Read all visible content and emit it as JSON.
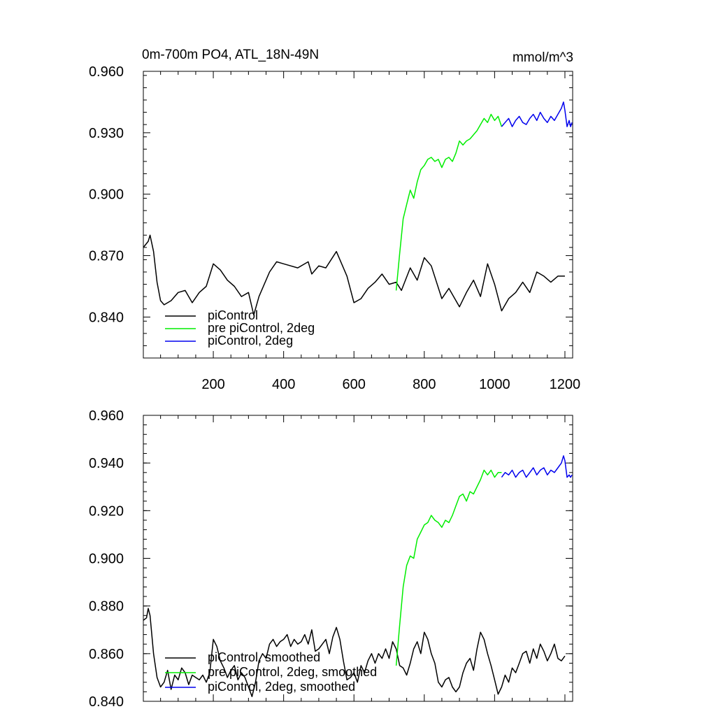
{
  "figure": {
    "title_left": "0m-700m PO4, ATL_18N-49N",
    "title_right": "mmol/m^3"
  },
  "chart_data": [
    {
      "type": "line",
      "title": "0m-700m PO4, ATL_18N-49N",
      "units": "mmol/m^3",
      "xlim": [
        1,
        1222
      ],
      "ylim": [
        0.82,
        0.96
      ],
      "xticks": [
        200,
        400,
        600,
        800,
        1000,
        1200
      ],
      "yticks": [
        0.84,
        0.87,
        0.9,
        0.93,
        0.96
      ],
      "ytick_labels": [
        "0.840",
        "0.870",
        "0.900",
        "0.930",
        "0.960"
      ],
      "legend_position": "bottom-left",
      "grid": false,
      "series": [
        {
          "name": "piControl",
          "color": "#000000",
          "x": [
            1,
            15,
            20,
            30,
            40,
            50,
            60,
            80,
            100,
            120,
            140,
            160,
            180,
            200,
            220,
            240,
            260,
            280,
            300,
            315,
            330,
            360,
            380,
            400,
            440,
            470,
            480,
            500,
            520,
            550,
            580,
            600,
            620,
            640,
            660,
            680,
            700,
            720,
            735,
            760,
            780,
            800,
            820,
            850,
            870,
            900,
            920,
            940,
            960,
            980,
            1000,
            1020,
            1040,
            1060,
            1080,
            1100,
            1120,
            1140,
            1160,
            1180,
            1200
          ],
          "y": [
            0.874,
            0.877,
            0.88,
            0.872,
            0.857,
            0.848,
            0.846,
            0.848,
            0.852,
            0.853,
            0.847,
            0.852,
            0.855,
            0.866,
            0.863,
            0.858,
            0.855,
            0.85,
            0.852,
            0.841,
            0.85,
            0.862,
            0.867,
            0.866,
            0.864,
            0.867,
            0.861,
            0.865,
            0.864,
            0.872,
            0.86,
            0.847,
            0.849,
            0.854,
            0.857,
            0.861,
            0.856,
            0.857,
            0.853,
            0.864,
            0.858,
            0.869,
            0.865,
            0.849,
            0.854,
            0.845,
            0.852,
            0.858,
            0.85,
            0.866,
            0.856,
            0.843,
            0.849,
            0.852,
            0.857,
            0.852,
            0.862,
            0.86,
            0.857,
            0.86,
            0.86
          ]
        },
        {
          "name": "pre piControl, 2deg",
          "color": "#00ee00",
          "x": [
            720,
            730,
            740,
            750,
            760,
            770,
            780,
            790,
            800,
            810,
            820,
            830,
            840,
            850,
            860,
            870,
            880,
            890,
            900,
            910,
            920,
            930,
            940,
            950,
            960,
            970,
            980,
            990,
            1000,
            1010,
            1020
          ],
          "y": [
            0.853,
            0.871,
            0.888,
            0.895,
            0.902,
            0.898,
            0.906,
            0.912,
            0.914,
            0.917,
            0.918,
            0.916,
            0.917,
            0.913,
            0.917,
            0.918,
            0.916,
            0.92,
            0.926,
            0.924,
            0.926,
            0.927,
            0.929,
            0.931,
            0.934,
            0.937,
            0.935,
            0.939,
            0.936,
            0.938,
            0.933
          ]
        },
        {
          "name": "piControl, 2deg",
          "color": "#0000ee",
          "x": [
            1020,
            1030,
            1040,
            1050,
            1060,
            1070,
            1080,
            1090,
            1100,
            1110,
            1120,
            1130,
            1140,
            1150,
            1160,
            1170,
            1180,
            1190,
            1196,
            1200,
            1206,
            1212,
            1216,
            1220
          ],
          "y": [
            0.933,
            0.935,
            0.937,
            0.933,
            0.936,
            0.938,
            0.935,
            0.934,
            0.937,
            0.939,
            0.936,
            0.94,
            0.937,
            0.935,
            0.938,
            0.936,
            0.939,
            0.942,
            0.945,
            0.941,
            0.933,
            0.936,
            0.933,
            0.935
          ]
        }
      ]
    },
    {
      "type": "line",
      "xlim": [
        1,
        1222
      ],
      "ylim": [
        0.84,
        0.96
      ],
      "xticks": [
        200,
        400,
        600,
        800,
        1000,
        1200
      ],
      "yticks": [
        0.84,
        0.86,
        0.88,
        0.9,
        0.92,
        0.94,
        0.96
      ],
      "ytick_labels": [
        "0.840",
        "0.860",
        "0.880",
        "0.900",
        "0.920",
        "0.940",
        "0.960"
      ],
      "legend_position": "bottom-left",
      "grid": false,
      "series": [
        {
          "name": "piControl, smoothed",
          "color": "#000000",
          "x": [
            1,
            10,
            15,
            20,
            25,
            30,
            40,
            50,
            60,
            70,
            80,
            90,
            100,
            110,
            120,
            130,
            140,
            150,
            160,
            170,
            180,
            190,
            200,
            210,
            220,
            230,
            240,
            250,
            260,
            270,
            280,
            290,
            300,
            310,
            320,
            330,
            340,
            350,
            360,
            370,
            380,
            390,
            400,
            410,
            420,
            430,
            440,
            450,
            460,
            470,
            480,
            490,
            500,
            510,
            520,
            530,
            540,
            550,
            560,
            570,
            580,
            590,
            600,
            610,
            620,
            630,
            640,
            650,
            660,
            670,
            680,
            690,
            700,
            710,
            720,
            730,
            740,
            750,
            760,
            770,
            780,
            790,
            800,
            810,
            820,
            830,
            840,
            850,
            860,
            870,
            880,
            890,
            900,
            910,
            920,
            930,
            940,
            950,
            960,
            970,
            980,
            990,
            1000,
            1010,
            1020,
            1030,
            1040,
            1050,
            1060,
            1070,
            1080,
            1090,
            1100,
            1110,
            1120,
            1130,
            1140,
            1150,
            1160,
            1170,
            1180,
            1190,
            1200
          ],
          "y": [
            0.874,
            0.875,
            0.879,
            0.876,
            0.868,
            0.86,
            0.85,
            0.846,
            0.848,
            0.853,
            0.845,
            0.851,
            0.849,
            0.854,
            0.852,
            0.847,
            0.851,
            0.85,
            0.849,
            0.851,
            0.848,
            0.852,
            0.866,
            0.863,
            0.857,
            0.854,
            0.85,
            0.853,
            0.855,
            0.849,
            0.852,
            0.85,
            0.846,
            0.842,
            0.848,
            0.857,
            0.86,
            0.858,
            0.864,
            0.866,
            0.863,
            0.865,
            0.866,
            0.868,
            0.863,
            0.866,
            0.864,
            0.865,
            0.868,
            0.864,
            0.87,
            0.861,
            0.862,
            0.864,
            0.866,
            0.86,
            0.867,
            0.871,
            0.866,
            0.857,
            0.849,
            0.85,
            0.852,
            0.848,
            0.855,
            0.852,
            0.857,
            0.86,
            0.856,
            0.86,
            0.858,
            0.862,
            0.858,
            0.865,
            0.862,
            0.855,
            0.854,
            0.851,
            0.856,
            0.862,
            0.865,
            0.86,
            0.869,
            0.866,
            0.86,
            0.856,
            0.848,
            0.846,
            0.849,
            0.85,
            0.846,
            0.844,
            0.846,
            0.852,
            0.856,
            0.858,
            0.853,
            0.862,
            0.869,
            0.866,
            0.86,
            0.855,
            0.849,
            0.843,
            0.846,
            0.851,
            0.848,
            0.854,
            0.852,
            0.856,
            0.86,
            0.861,
            0.856,
            0.862,
            0.858,
            0.864,
            0.861,
            0.857,
            0.86,
            0.864,
            0.858,
            0.857,
            0.859
          ]
        },
        {
          "name": "pre piControl, 2deg, smoothed",
          "color": "#00ee00",
          "x": [
            720,
            730,
            740,
            750,
            760,
            770,
            780,
            790,
            800,
            810,
            820,
            830,
            840,
            850,
            860,
            870,
            880,
            890,
            900,
            910,
            920,
            930,
            940,
            950,
            960,
            970,
            980,
            990,
            1000,
            1010,
            1020
          ],
          "y": [
            0.855,
            0.872,
            0.888,
            0.897,
            0.901,
            0.9,
            0.908,
            0.911,
            0.914,
            0.915,
            0.918,
            0.916,
            0.915,
            0.913,
            0.916,
            0.915,
            0.918,
            0.922,
            0.926,
            0.927,
            0.924,
            0.928,
            0.927,
            0.93,
            0.933,
            0.937,
            0.935,
            0.937,
            0.934,
            0.936,
            0.936
          ]
        },
        {
          "name": "piControl, 2deg, smoothed",
          "color": "#0000ee",
          "x": [
            1020,
            1030,
            1040,
            1050,
            1060,
            1070,
            1080,
            1090,
            1100,
            1110,
            1120,
            1130,
            1140,
            1150,
            1160,
            1170,
            1180,
            1190,
            1196,
            1200,
            1206,
            1212,
            1216,
            1220
          ],
          "y": [
            0.934,
            0.936,
            0.935,
            0.937,
            0.934,
            0.936,
            0.937,
            0.934,
            0.936,
            0.938,
            0.935,
            0.937,
            0.938,
            0.935,
            0.937,
            0.936,
            0.938,
            0.94,
            0.943,
            0.941,
            0.934,
            0.935,
            0.934,
            0.935
          ]
        }
      ]
    }
  ]
}
